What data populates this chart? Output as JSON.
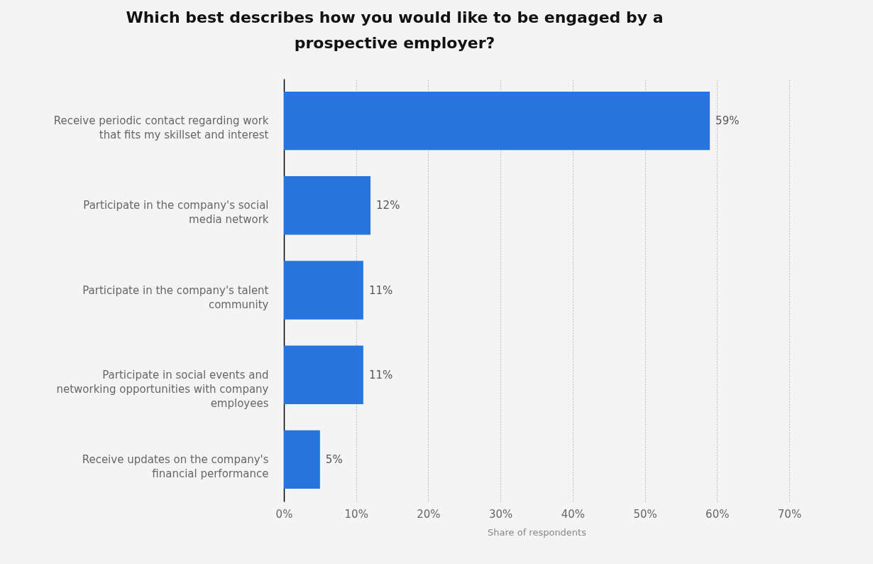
{
  "chart_data": {
    "type": "bar",
    "orientation": "horizontal",
    "title": "Which best describes how you would like to be engaged by a prospective employer?",
    "xlabel": "Share of respondents",
    "categories": [
      "Receive periodic contact regarding work that fits my skillset and interest",
      "Participate in the company's social media network",
      "Participate in the company's talent community",
      "Participate in social events and networking opportunities with company employees",
      "Receive updates on the company's financial performance"
    ],
    "values": [
      59,
      12,
      11,
      11,
      5
    ],
    "value_labels": [
      "59%",
      "12%",
      "11%",
      "11%",
      "5%"
    ],
    "color": "#2876dd",
    "xlim": [
      0,
      70
    ],
    "xticks": [
      {
        "value": 0,
        "label": "0%"
      },
      {
        "value": 10,
        "label": "10%"
      },
      {
        "value": 20,
        "label": "20%"
      },
      {
        "value": 30,
        "label": "30%"
      },
      {
        "value": 40,
        "label": "40%"
      },
      {
        "value": 50,
        "label": "50%"
      },
      {
        "value": 60,
        "label": "60%"
      },
      {
        "value": 70,
        "label": "70%"
      }
    ],
    "grid": "x"
  }
}
